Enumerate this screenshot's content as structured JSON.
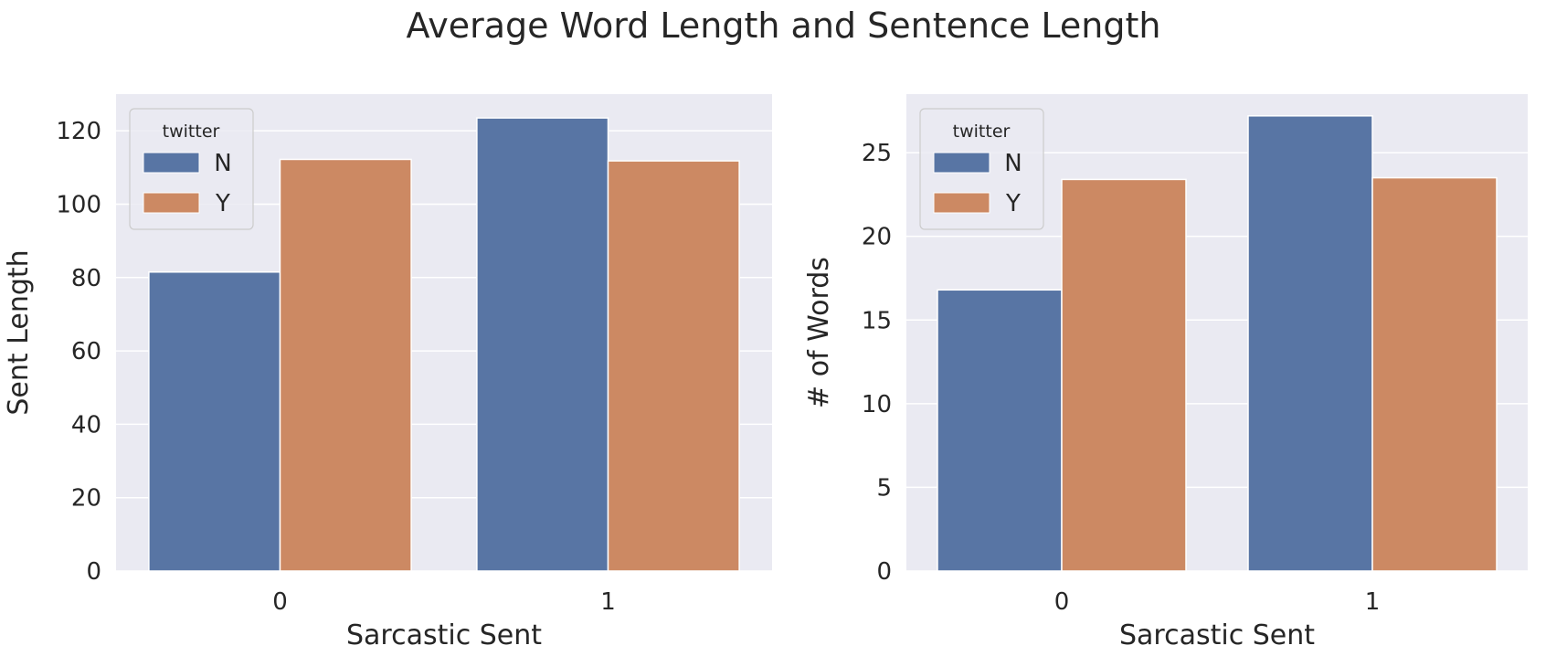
{
  "figure": {
    "title": "Average Word Length and Sentence Length"
  },
  "colors": {
    "N": "#5875a4",
    "Y": "#cc8963",
    "plot_bg": "#eaeaf2",
    "grid": "#ffffff",
    "text": "#262626"
  },
  "chart_data": [
    {
      "type": "bar",
      "categories": [
        "0",
        "1"
      ],
      "series": [
        {
          "name": "N",
          "values": [
            81.5,
            123.5
          ]
        },
        {
          "name": "Y",
          "values": [
            112.2,
            111.8
          ]
        }
      ],
      "xlabel": "Sarcastic Sent",
      "ylabel": "Sent Length",
      "ylim": [
        0,
        130
      ],
      "yticks": [
        0,
        20,
        40,
        60,
        80,
        100,
        120
      ],
      "legend": {
        "title": "twitter",
        "entries": [
          "N",
          "Y"
        ],
        "placement": "top-left"
      },
      "grid": true
    },
    {
      "type": "bar",
      "categories": [
        "0",
        "1"
      ],
      "series": [
        {
          "name": "N",
          "values": [
            16.8,
            27.2
          ]
        },
        {
          "name": "Y",
          "values": [
            23.4,
            23.5
          ]
        }
      ],
      "xlabel": "Sarcastic Sent",
      "ylabel": "# of Words",
      "ylim": [
        0,
        28.5
      ],
      "yticks": [
        0,
        5,
        10,
        15,
        20,
        25
      ],
      "legend": {
        "title": "twitter",
        "entries": [
          "N",
          "Y"
        ],
        "placement": "top-left"
      },
      "grid": true
    }
  ]
}
